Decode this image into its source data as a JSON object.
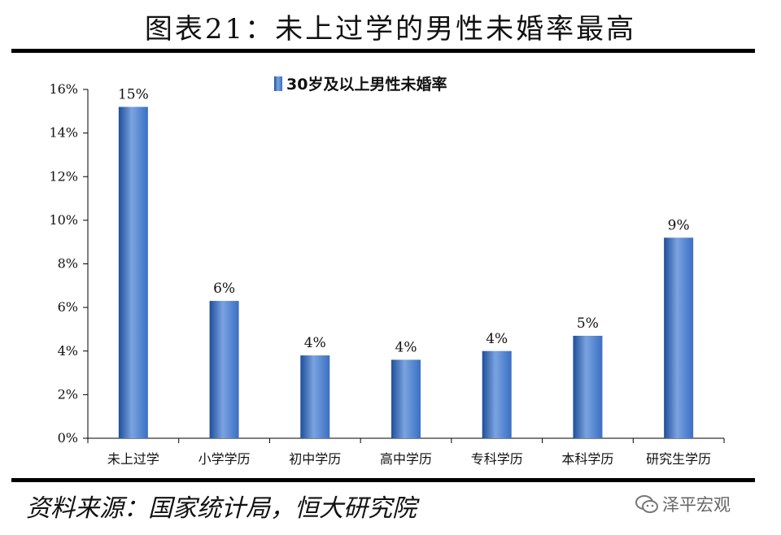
{
  "header": {
    "title": "图表21：未上过学的男性未婚率最高"
  },
  "footer": {
    "source": "资料来源：国家统计局，恒大研究院",
    "watermark": "泽平宏观"
  },
  "colors": {
    "bar": "#3a6fc4",
    "bar_dark": "#1f4e9a",
    "bar_light": "#7aa3e0",
    "axis": "#000000"
  },
  "chart_data": {
    "type": "bar",
    "categories": [
      "未上过学",
      "小学学历",
      "初中学历",
      "高中学历",
      "专科学历",
      "本科学历",
      "研究生学历"
    ],
    "series": [
      {
        "name": "30岁及以上男性未婚率",
        "values": [
          15.2,
          6.3,
          3.8,
          3.6,
          4.0,
          4.7,
          9.2
        ]
      }
    ],
    "data_labels": [
      "15%",
      "6%",
      "4%",
      "4%",
      "4%",
      "5%",
      "9%"
    ],
    "yticks": [
      "0%",
      "2%",
      "4%",
      "6%",
      "8%",
      "10%",
      "12%",
      "14%",
      "16%"
    ],
    "ylim": [
      0,
      16
    ],
    "legend_position": "top-center"
  }
}
